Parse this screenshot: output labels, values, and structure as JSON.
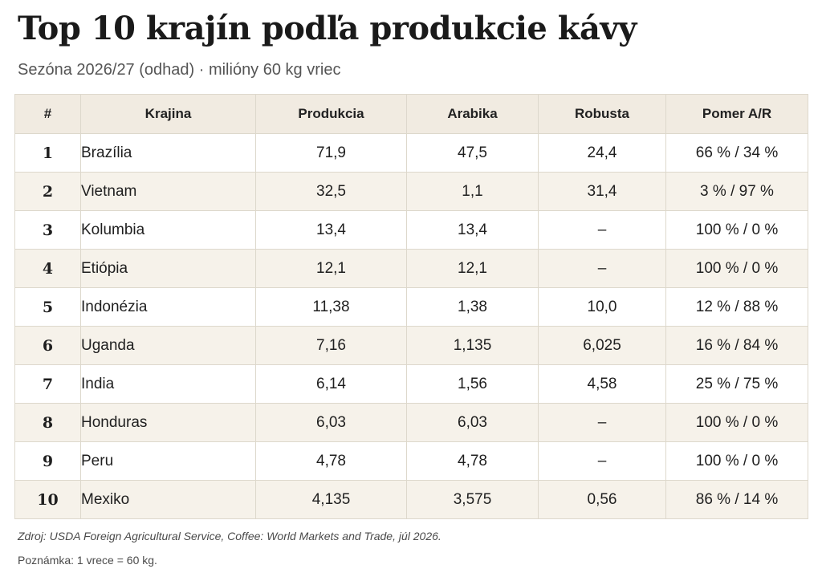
{
  "header": {
    "title": "Top 10 krajín podľa produkcie kávy",
    "subtitle": "Sezóna 2026/27 (odhad) · milióny 60 kg vriec"
  },
  "table": {
    "columns": [
      "#",
      "Krajina",
      "Produkcia",
      "Arabika",
      "Robusta",
      "Pomer A/R"
    ],
    "rows": [
      {
        "rank": "1",
        "country": "Brazília",
        "production": "71,9",
        "arabica": "47,5",
        "robusta": "24,4",
        "ratio": "66 % / 34 %"
      },
      {
        "rank": "2",
        "country": "Vietnam",
        "production": "32,5",
        "arabica": "1,1",
        "robusta": "31,4",
        "ratio": "3 % / 97 %"
      },
      {
        "rank": "3",
        "country": "Kolumbia",
        "production": "13,4",
        "arabica": "13,4",
        "robusta": "–",
        "ratio": "100 % / 0 %"
      },
      {
        "rank": "4",
        "country": "Etiópia",
        "production": "12,1",
        "arabica": "12,1",
        "robusta": "–",
        "ratio": "100 % / 0 %"
      },
      {
        "rank": "5",
        "country": "Indonézia",
        "production": "11,38",
        "arabica": "1,38",
        "robusta": "10,0",
        "ratio": "12 % / 88 %"
      },
      {
        "rank": "6",
        "country": "Uganda",
        "production": "7,16",
        "arabica": "1,135",
        "robusta": "6,025",
        "ratio": "16 % / 84 %"
      },
      {
        "rank": "7",
        "country": "India",
        "production": "6,14",
        "arabica": "1,56",
        "robusta": "4,58",
        "ratio": "25 % / 75 %"
      },
      {
        "rank": "8",
        "country": "Honduras",
        "production": "6,03",
        "arabica": "6,03",
        "robusta": "–",
        "ratio": "100 % / 0 %"
      },
      {
        "rank": "9",
        "country": "Peru",
        "production": "4,78",
        "arabica": "4,78",
        "robusta": "–",
        "ratio": "100 % / 0 %"
      },
      {
        "rank": "10",
        "country": "Mexiko",
        "production": "4,135",
        "arabica": "3,575",
        "robusta": "0,56",
        "ratio": "86 % / 14 %"
      }
    ]
  },
  "footer": {
    "source": "Zdroj: USDA Foreign Agricultural Service, Coffee: World Markets and Trade, júl 2026.",
    "note": "Poznámka: 1 vrece = 60 kg."
  }
}
